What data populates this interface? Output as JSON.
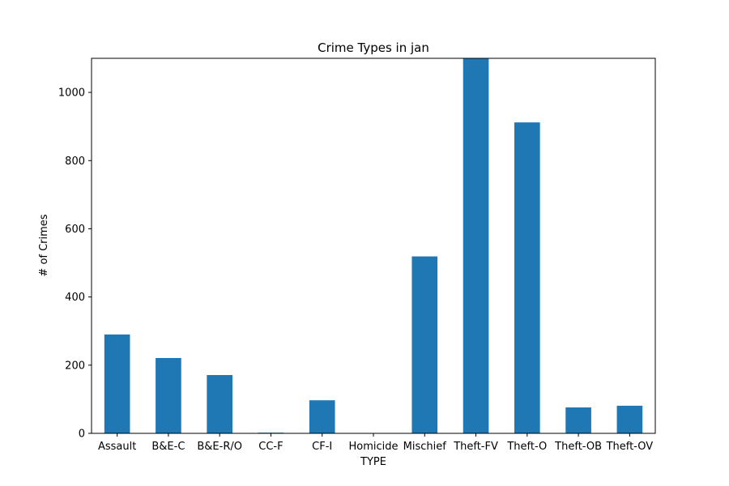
{
  "chart_data": {
    "type": "bar",
    "title": "Crime Types in jan",
    "xlabel": "TYPE",
    "ylabel": "# of Crimes",
    "categories": [
      "Assault",
      "B&E-C",
      "B&E-R/O",
      "CC-F",
      "CF-I",
      "Homicide",
      "Mischief",
      "Theft-FV",
      "Theft-O",
      "Theft-OB",
      "Theft-OV"
    ],
    "values": [
      290,
      221,
      171,
      2,
      97,
      1,
      519,
      1100,
      912,
      76,
      81
    ],
    "ylim": [
      0,
      1100
    ],
    "yticks": [
      0,
      200,
      400,
      600,
      800,
      1000
    ],
    "bar_color": "#1f77b4",
    "grid": false,
    "legend": "none"
  }
}
